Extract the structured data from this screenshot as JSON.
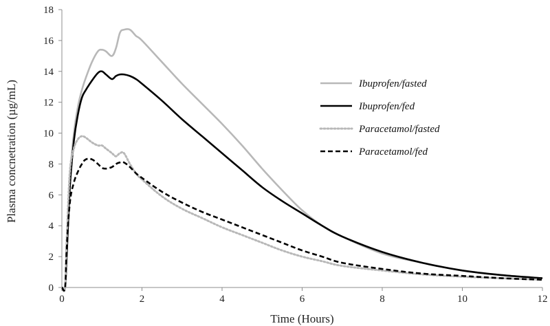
{
  "chart_data": {
    "type": "line",
    "title": "",
    "xlabel": "Time (Hours)",
    "ylabel": "Plasma concnetration (µg/mL)",
    "xlim": [
      0,
      12
    ],
    "ylim": [
      0,
      18
    ],
    "xticks": [
      0,
      2,
      4,
      6,
      8,
      10,
      12
    ],
    "yticks": [
      0,
      2,
      4,
      6,
      8,
      10,
      12,
      14,
      16,
      18
    ],
    "grid": false,
    "legend_position": "right",
    "series": [
      {
        "name": "Ibuprofen/fasted",
        "color": "#b8b8b8",
        "style": "solid",
        "x": [
          0,
          0.08,
          0.12,
          0.2,
          0.3,
          0.4,
          0.5,
          0.6,
          0.75,
          0.9,
          1.0,
          1.1,
          1.25,
          1.35,
          1.45,
          1.55,
          1.7,
          1.85,
          2.0,
          2.5,
          3.0,
          3.5,
          4.0,
          4.5,
          5.0,
          5.5,
          6.0,
          6.5,
          7.0,
          8.0,
          9.0,
          10.0,
          11.0,
          12.0
        ],
        "y": [
          0,
          0,
          2.0,
          7.0,
          10.0,
          11.7,
          12.8,
          13.6,
          14.6,
          15.3,
          15.4,
          15.3,
          15.0,
          15.5,
          16.5,
          16.7,
          16.7,
          16.3,
          16.0,
          14.6,
          13.2,
          11.9,
          10.6,
          9.2,
          7.7,
          6.3,
          5.0,
          4.0,
          3.3,
          2.2,
          1.6,
          1.1,
          0.8,
          0.6
        ]
      },
      {
        "name": "Ibuprofen/fed",
        "color": "#000000",
        "style": "solid",
        "x": [
          0,
          0.08,
          0.12,
          0.2,
          0.3,
          0.4,
          0.5,
          0.6,
          0.75,
          0.9,
          1.0,
          1.1,
          1.25,
          1.35,
          1.45,
          1.55,
          1.7,
          1.85,
          2.0,
          2.5,
          3.0,
          3.5,
          4.0,
          4.5,
          5.0,
          5.5,
          6.0,
          6.5,
          7.0,
          8.0,
          9.0,
          10.0,
          11.0,
          12.0
        ],
        "y": [
          0,
          0,
          2.0,
          6.5,
          9.5,
          11.2,
          12.3,
          12.8,
          13.4,
          13.9,
          14.0,
          13.8,
          13.5,
          13.7,
          13.8,
          13.8,
          13.7,
          13.5,
          13.2,
          12.1,
          10.9,
          9.8,
          8.7,
          7.6,
          6.5,
          5.6,
          4.8,
          4.0,
          3.3,
          2.3,
          1.6,
          1.1,
          0.8,
          0.6
        ]
      },
      {
        "name": "Paracetamol/fasted",
        "color": "#b8b8b8",
        "style": "dotted",
        "x": [
          0,
          0.08,
          0.12,
          0.2,
          0.3,
          0.4,
          0.5,
          0.6,
          0.75,
          0.9,
          1.0,
          1.1,
          1.25,
          1.35,
          1.45,
          1.55,
          1.7,
          1.85,
          2.0,
          2.5,
          3.0,
          3.5,
          4.0,
          4.5,
          5.0,
          5.5,
          6.0,
          6.5,
          7.0,
          8.0,
          9.0,
          10.0,
          11.0,
          12.0
        ],
        "y": [
          0,
          0,
          3.0,
          7.5,
          9.0,
          9.6,
          9.8,
          9.7,
          9.4,
          9.2,
          9.2,
          9.0,
          8.7,
          8.5,
          8.7,
          8.7,
          8.0,
          7.4,
          7.0,
          5.9,
          5.1,
          4.5,
          3.9,
          3.4,
          2.9,
          2.4,
          2.0,
          1.7,
          1.4,
          1.1,
          0.85,
          0.7,
          0.6,
          0.5
        ]
      },
      {
        "name": "Paracetamol/fed",
        "color": "#000000",
        "style": "dashed",
        "x": [
          0,
          0.08,
          0.12,
          0.2,
          0.3,
          0.4,
          0.5,
          0.6,
          0.75,
          0.9,
          1.0,
          1.1,
          1.25,
          1.35,
          1.45,
          1.55,
          1.7,
          1.85,
          2.0,
          2.5,
          3.0,
          3.5,
          4.0,
          4.5,
          5.0,
          5.5,
          6.0,
          6.5,
          7.0,
          8.0,
          9.0,
          10.0,
          11.0,
          12.0
        ],
        "y": [
          0,
          0,
          2.5,
          5.5,
          6.8,
          7.5,
          8.0,
          8.3,
          8.3,
          8.0,
          7.75,
          7.7,
          7.8,
          8.0,
          8.1,
          8.1,
          7.8,
          7.4,
          7.1,
          6.2,
          5.5,
          4.9,
          4.4,
          3.9,
          3.4,
          2.9,
          2.4,
          2.0,
          1.6,
          1.2,
          0.9,
          0.75,
          0.6,
          0.5
        ]
      }
    ]
  }
}
